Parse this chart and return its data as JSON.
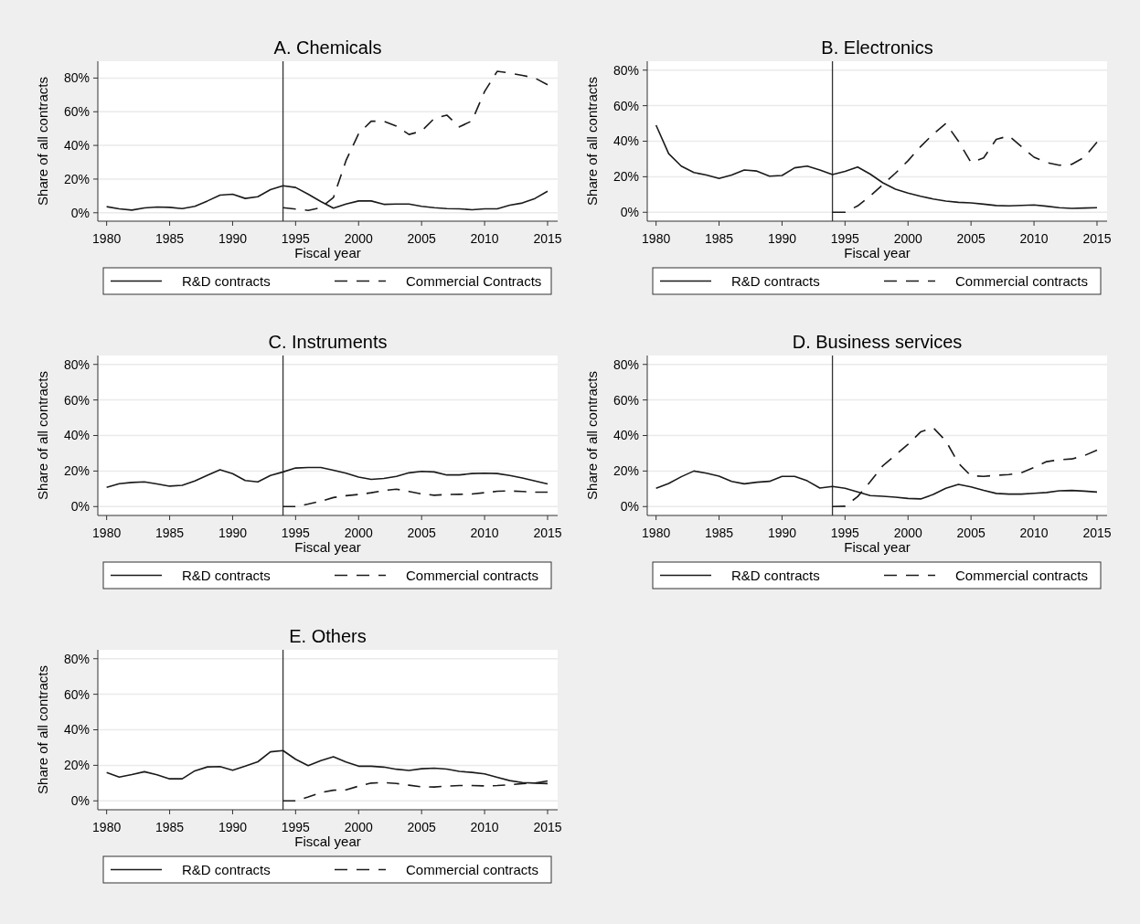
{
  "chart_data": [
    {
      "type": "line",
      "title": "A. Chemicals",
      "xlabel": "Fiscal year",
      "ylabel": "Share of all contracts",
      "xlim": [
        1979.3,
        2015.8
      ],
      "ylim": [
        -5,
        90
      ],
      "xticks": [
        1980,
        1985,
        1990,
        1995,
        2000,
        2005,
        2010,
        2015
      ],
      "yticks": [
        {
          "value": 0,
          "label": "0%"
        },
        {
          "value": 20,
          "label": "20%"
        },
        {
          "value": 40,
          "label": "40%"
        },
        {
          "value": 60,
          "label": "60%"
        },
        {
          "value": 80,
          "label": "80%"
        }
      ],
      "grid": "y",
      "legend": "bottom",
      "ref_lines": [
        {
          "axis": "x",
          "value": 1994,
          "color": "#333333"
        }
      ],
      "series": [
        {
          "name": "R&D contracts",
          "color": "#1a1a1a",
          "line_style": "solid",
          "x": [
            1980,
            1981,
            1982,
            1983,
            1984,
            1985,
            1986,
            1987,
            1988,
            1989,
            1990,
            1991,
            1992,
            1993,
            1994,
            1995,
            1996,
            1997,
            1998,
            1999,
            2000,
            2001,
            2002,
            2003,
            2004,
            2005,
            2006,
            2007,
            2008,
            2009,
            2010,
            2011,
            2012,
            2013,
            2014,
            2015
          ],
          "values": [
            3.6,
            2.3,
            1.6,
            2.9,
            3.4,
            3.2,
            2.5,
            3.8,
            7,
            10.5,
            11,
            8.5,
            9.5,
            13.7,
            16,
            15,
            11,
            6.7,
            2.7,
            5.2,
            7,
            7,
            5,
            5.2,
            5.2,
            3.8,
            3,
            2.5,
            2.3,
            1.8,
            2.3,
            2.3,
            4.5,
            5.8,
            8.5,
            12.8
          ]
        },
        {
          "name": "Commercial Contracts",
          "color": "#1a1a1a",
          "line_style": "dashed",
          "x": [
            1994,
            1995,
            1996,
            1997,
            1998,
            1999,
            2000,
            2001,
            2002,
            2003,
            2004,
            2005,
            2006,
            2007,
            2008,
            2009,
            2010,
            2011,
            2012,
            2013,
            2014,
            2015
          ],
          "values": [
            3,
            2.2,
            1.4,
            3,
            9,
            31,
            47,
            54.4,
            54.4,
            51.5,
            46.5,
            48.5,
            56,
            58,
            51,
            54.6,
            72,
            84,
            83,
            81.6,
            80,
            76
          ]
        }
      ]
    },
    {
      "type": "line",
      "title": "B. Electronics",
      "xlabel": "Fiscal year",
      "ylabel": "Share of all contracts",
      "xlim": [
        1979.3,
        2015.8
      ],
      "ylim": [
        -5,
        85
      ],
      "xticks": [
        1980,
        1985,
        1990,
        1995,
        2000,
        2005,
        2010,
        2015
      ],
      "yticks": [
        {
          "value": 0,
          "label": "0%"
        },
        {
          "value": 20,
          "label": "20%"
        },
        {
          "value": 40,
          "label": "40%"
        },
        {
          "value": 60,
          "label": "60%"
        },
        {
          "value": 80,
          "label": "80%"
        }
      ],
      "grid": "y",
      "legend": "bottom",
      "ref_lines": [
        {
          "axis": "x",
          "value": 1994,
          "color": "#333333"
        }
      ],
      "series": [
        {
          "name": "R&D contracts",
          "color": "#1a1a1a",
          "line_style": "solid",
          "x": [
            1980,
            1981,
            1982,
            1983,
            1984,
            1985,
            1986,
            1987,
            1988,
            1989,
            1990,
            1991,
            1992,
            1993,
            1994,
            1995,
            1996,
            1997,
            1998,
            1999,
            2000,
            2001,
            2002,
            2003,
            2004,
            2005,
            2006,
            2007,
            2008,
            2009,
            2010,
            2011,
            2012,
            2013,
            2014,
            2015
          ],
          "values": [
            49,
            33,
            26,
            22.4,
            21,
            19,
            21,
            23.8,
            23.2,
            20.3,
            20.7,
            25,
            26,
            23.8,
            21.2,
            23,
            25.5,
            21.5,
            16.6,
            13,
            10.8,
            9,
            7.5,
            6.3,
            5.6,
            5.3,
            4.6,
            3.8,
            3.6,
            3.9,
            4.1,
            3.4,
            2.6,
            2.2,
            2.4,
            2.6
          ]
        },
        {
          "name": "Commercial contracts",
          "color": "#1a1a1a",
          "line_style": "dashed",
          "x": [
            1994,
            1995,
            1996,
            1997,
            1998,
            1999,
            2000,
            2001,
            2002,
            2003,
            2004,
            2005,
            2006,
            2007,
            2008,
            2009,
            2010,
            2011,
            2012,
            2013,
            2014,
            2015
          ],
          "values": [
            0,
            0,
            3.6,
            9.2,
            15.6,
            22,
            29,
            37,
            44,
            50,
            40,
            28,
            30.6,
            41,
            43,
            37,
            31,
            28,
            26.5,
            27,
            31,
            39.5
          ]
        }
      ]
    },
    {
      "type": "line",
      "title": "C. Instruments",
      "xlabel": "Fiscal year",
      "ylabel": "Share of all contracts",
      "xlim": [
        1979.3,
        2015.8
      ],
      "ylim": [
        -5,
        85
      ],
      "xticks": [
        1980,
        1985,
        1990,
        1995,
        2000,
        2005,
        2010,
        2015
      ],
      "yticks": [
        {
          "value": 0,
          "label": "0%"
        },
        {
          "value": 20,
          "label": "20%"
        },
        {
          "value": 40,
          "label": "40%"
        },
        {
          "value": 60,
          "label": "60%"
        },
        {
          "value": 80,
          "label": "80%"
        }
      ],
      "grid": "y",
      "legend": "bottom",
      "ref_lines": [
        {
          "axis": "x",
          "value": 1994,
          "color": "#333333"
        }
      ],
      "series": [
        {
          "name": "R&D contracts",
          "color": "#1a1a1a",
          "line_style": "solid",
          "x": [
            1980,
            1981,
            1982,
            1983,
            1984,
            1985,
            1986,
            1987,
            1988,
            1989,
            1990,
            1991,
            1992,
            1993,
            1994,
            1995,
            1996,
            1997,
            1998,
            1999,
            2000,
            2001,
            2002,
            2003,
            2004,
            2005,
            2006,
            2007,
            2008,
            2009,
            2010,
            2011,
            2012,
            2013,
            2014,
            2015
          ],
          "values": [
            10.8,
            12.9,
            13.6,
            13.9,
            12.7,
            11.5,
            12,
            14.4,
            17.6,
            20.7,
            18.5,
            14.7,
            13.9,
            17.5,
            19.5,
            21.7,
            22,
            22,
            20.5,
            18.8,
            16.6,
            15.3,
            15.8,
            17,
            19,
            19.8,
            19.5,
            17.8,
            17.8,
            18.6,
            18.8,
            18.6,
            17.5,
            16.1,
            14.4,
            12.7
          ]
        },
        {
          "name": "Commercial contracts",
          "color": "#1a1a1a",
          "line_style": "dashed",
          "x": [
            1994,
            1995,
            1996,
            1997,
            1998,
            1999,
            2000,
            2001,
            2002,
            2003,
            2004,
            2005,
            2006,
            2007,
            2008,
            2009,
            2010,
            2011,
            2012,
            2013,
            2014,
            2015
          ],
          "values": [
            0,
            0,
            1.4,
            3,
            5.1,
            6.1,
            6.8,
            7.8,
            9,
            9.8,
            8.5,
            7.1,
            6.4,
            6.8,
            6.9,
            7.1,
            7.8,
            8.6,
            8.8,
            8.5,
            8.1,
            8.1
          ]
        }
      ]
    },
    {
      "type": "line",
      "title": "D. Business services",
      "xlabel": "Fiscal year",
      "ylabel": "Share of all contracts",
      "xlim": [
        1979.3,
        2015.8
      ],
      "ylim": [
        -5,
        85
      ],
      "xticks": [
        1980,
        1985,
        1990,
        1995,
        2000,
        2005,
        2010,
        2015
      ],
      "yticks": [
        {
          "value": 0,
          "label": "0%"
        },
        {
          "value": 20,
          "label": "20%"
        },
        {
          "value": 40,
          "label": "40%"
        },
        {
          "value": 60,
          "label": "60%"
        },
        {
          "value": 80,
          "label": "80%"
        }
      ],
      "grid": "y",
      "legend": "bottom",
      "ref_lines": [
        {
          "axis": "x",
          "value": 1994,
          "color": "#333333"
        }
      ],
      "series": [
        {
          "name": "R&D contracts",
          "color": "#1a1a1a",
          "line_style": "solid",
          "x": [
            1980,
            1981,
            1982,
            1983,
            1984,
            1985,
            1986,
            1987,
            1988,
            1989,
            1990,
            1991,
            1992,
            1993,
            1994,
            1995,
            1996,
            1997,
            1998,
            1999,
            2000,
            2001,
            2002,
            2003,
            2004,
            2005,
            2006,
            2007,
            2008,
            2009,
            2010,
            2011,
            2012,
            2013,
            2014,
            2015
          ],
          "values": [
            10.3,
            13,
            16.8,
            20,
            18.8,
            17.1,
            14.2,
            12.8,
            13.7,
            14.2,
            17,
            17,
            14.5,
            10.4,
            11.3,
            10.3,
            8.2,
            6.2,
            5.8,
            5.3,
            4.6,
            4.3,
            6.8,
            10.3,
            12.5,
            11.1,
            9.1,
            7.4,
            7,
            7,
            7.5,
            7.9,
            8.9,
            9.1,
            8.7,
            8.2
          ]
        },
        {
          "name": "Commercial contracts",
          "color": "#1a1a1a",
          "line_style": "dashed",
          "x": [
            1994,
            1995,
            1996,
            1997,
            1998,
            1999,
            2000,
            2001,
            2002,
            2003,
            2004,
            2005,
            2006,
            2007,
            2008,
            2009,
            2010,
            2011,
            2012,
            2013,
            2014,
            2015
          ],
          "values": [
            0,
            0.2,
            5.6,
            14,
            23,
            29,
            35,
            42,
            44.4,
            37,
            24.4,
            17.3,
            17,
            17.6,
            18,
            19,
            22,
            25.3,
            26.3,
            26.8,
            28.7,
            31.8
          ]
        }
      ]
    },
    {
      "type": "line",
      "title": "E. Others",
      "xlabel": "Fiscal year",
      "ylabel": "Share of all contracts",
      "xlim": [
        1979.3,
        2015.8
      ],
      "ylim": [
        -5,
        85
      ],
      "xticks": [
        1980,
        1985,
        1990,
        1995,
        2000,
        2005,
        2010,
        2015
      ],
      "yticks": [
        {
          "value": 0,
          "label": "0%"
        },
        {
          "value": 20,
          "label": "20%"
        },
        {
          "value": 40,
          "label": "40%"
        },
        {
          "value": 60,
          "label": "60%"
        },
        {
          "value": 80,
          "label": "80%"
        }
      ],
      "grid": "y",
      "legend": "bottom",
      "ref_lines": [
        {
          "axis": "x",
          "value": 1994,
          "color": "#333333"
        }
      ],
      "series": [
        {
          "name": "R&D contracts",
          "color": "#1a1a1a",
          "line_style": "solid",
          "x": [
            1980,
            1981,
            1982,
            1983,
            1984,
            1985,
            1986,
            1987,
            1988,
            1989,
            1990,
            1991,
            1992,
            1993,
            1994,
            1995,
            1996,
            1997,
            1998,
            1999,
            2000,
            2001,
            2002,
            2003,
            2004,
            2005,
            2006,
            2007,
            2008,
            2009,
            2010,
            2011,
            2012,
            2013,
            2014,
            2015
          ],
          "values": [
            15.9,
            13.4,
            14.8,
            16.4,
            14.7,
            12.4,
            12.4,
            16.9,
            19.1,
            19.3,
            17.2,
            19.5,
            22,
            27.6,
            28.3,
            23.4,
            19.8,
            22.6,
            24.8,
            21.9,
            19.5,
            19.5,
            19,
            17.8,
            17.1,
            18.1,
            18.4,
            17.9,
            16.6,
            16,
            15.2,
            13.3,
            11.4,
            10.3,
            10,
            11.2
          ]
        },
        {
          "name": "Commercial contracts",
          "color": "#1a1a1a",
          "line_style": "dashed",
          "x": [
            1994,
            1995,
            1996,
            1997,
            1998,
            1999,
            2000,
            2001,
            2002,
            2003,
            2004,
            2005,
            2006,
            2007,
            2008,
            2009,
            2010,
            2011,
            2012,
            2013,
            2014,
            2015
          ],
          "values": [
            0,
            0,
            2.2,
            4.7,
            6,
            6.2,
            8.3,
            10,
            10.3,
            9.8,
            8.8,
            7.9,
            7.8,
            8.3,
            8.6,
            8.6,
            8.4,
            8.6,
            9,
            9.7,
            10,
            9.7
          ]
        }
      ]
    }
  ]
}
